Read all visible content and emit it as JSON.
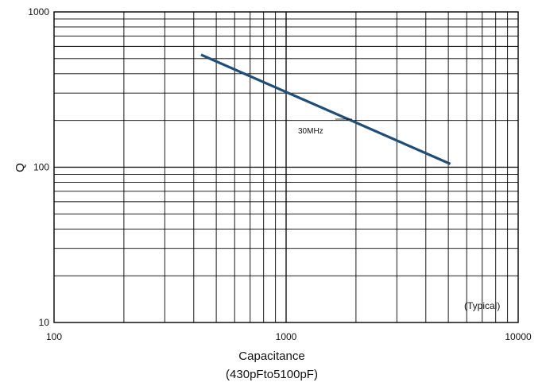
{
  "chart_data": {
    "type": "line",
    "title": "",
    "xlabel": "Capacitance",
    "xlabel_sub": "(430pFto5100pF)",
    "ylabel": "Q",
    "x_scale": "log",
    "y_scale": "log",
    "xlim": [
      100,
      10000
    ],
    "ylim": [
      10,
      1000
    ],
    "x_ticks": [
      "100",
      "1000",
      "10000"
    ],
    "y_ticks": [
      "10",
      "100",
      "1000"
    ],
    "grid": true,
    "line_color": "#1f4e79",
    "series": [
      {
        "x": [
          430,
          5100
        ],
        "y": [
          530,
          105
        ]
      }
    ],
    "annotations": {
      "frequency": "30MHz",
      "note": "(Typical)"
    }
  }
}
